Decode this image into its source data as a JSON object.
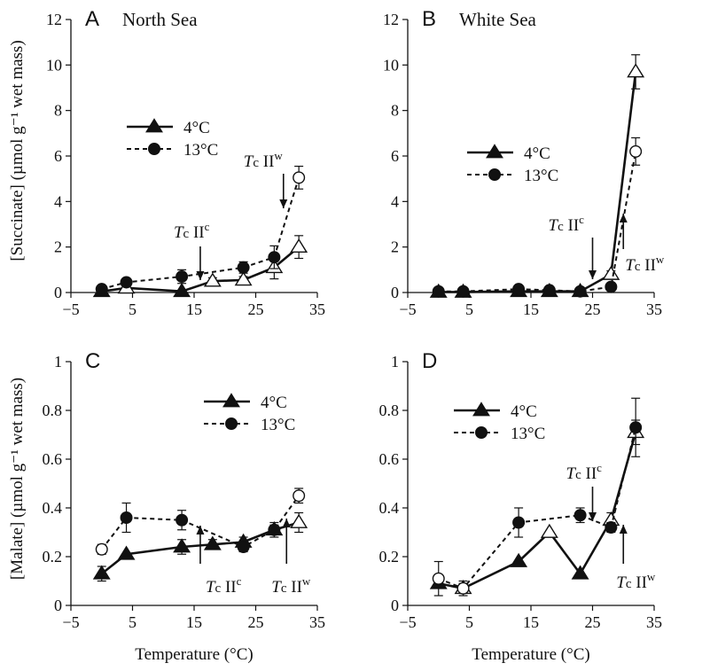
{
  "figure": {
    "ylabel_top": "[Succinate] (µmol g⁻¹ wet mass)",
    "ylabel_bottom": "[Malate] (µmol g⁻¹ wet mass)",
    "xlabel": "Temperature (°C)"
  },
  "chart_data": [
    {
      "type": "line",
      "panel": "A",
      "title": "North Sea",
      "xlim": [
        -5,
        35
      ],
      "xticks": [
        -5,
        5,
        15,
        25,
        35
      ],
      "ylim": [
        0,
        12
      ],
      "yticks": [
        0,
        2,
        4,
        6,
        8,
        10,
        12
      ],
      "xlabel": "",
      "legend": {
        "position": "left",
        "entries": [
          "4°C",
          "13°C"
        ]
      },
      "series": [
        {
          "name": "4°C",
          "marker": "triangle",
          "line": "solid",
          "x": [
            0,
            4,
            13,
            18,
            23,
            28,
            32
          ],
          "y": [
            0.05,
            0.2,
            0.05,
            0.5,
            0.55,
            1.1,
            2.0
          ],
          "err": [
            0,
            0,
            0,
            0.15,
            0.15,
            0.5,
            0.5
          ],
          "open": [
            false,
            true,
            false,
            true,
            true,
            true,
            true
          ]
        },
        {
          "name": "13°C",
          "marker": "circle",
          "line": "dashed",
          "x": [
            0,
            4,
            13,
            23,
            28,
            32
          ],
          "y": [
            0.15,
            0.45,
            0.7,
            1.1,
            1.55,
            5.05
          ],
          "err": [
            0,
            0,
            0.3,
            0.25,
            0.5,
            0.5
          ],
          "open": [
            false,
            false,
            false,
            false,
            false,
            true
          ]
        }
      ],
      "annotations": [
        {
          "main": "T",
          "sub": "c",
          "rest": " II",
          "sup": "c",
          "x": 16,
          "arrow": "down"
        },
        {
          "main": "T",
          "sub": "c",
          "rest": " II",
          "sup": "w",
          "x": 29.5,
          "arrow": "down"
        }
      ]
    },
    {
      "type": "line",
      "panel": "B",
      "title": "White Sea",
      "xlim": [
        -5,
        35
      ],
      "xticks": [
        -5,
        5,
        15,
        25,
        35
      ],
      "ylim": [
        0,
        12
      ],
      "yticks": [
        0,
        2,
        4,
        6,
        8,
        10,
        12
      ],
      "xlabel": "",
      "legend": {
        "position": "left",
        "entries": [
          "4°C",
          "13°C"
        ]
      },
      "series": [
        {
          "name": "4°C",
          "marker": "triangle",
          "line": "solid",
          "x": [
            0,
            4,
            13,
            18,
            23,
            28,
            32
          ],
          "y": [
            0.02,
            0.02,
            0.05,
            0.05,
            0.05,
            0.8,
            9.7
          ],
          "err": [
            0,
            0,
            0,
            0,
            0,
            0.15,
            0.75
          ],
          "open": [
            false,
            false,
            false,
            false,
            false,
            true,
            true
          ]
        },
        {
          "name": "13°C",
          "marker": "circle",
          "line": "dashed",
          "x": [
            0,
            4,
            13,
            18,
            23,
            28,
            32
          ],
          "y": [
            0.05,
            0.05,
            0.15,
            0.1,
            0.05,
            0.25,
            6.2
          ],
          "err": [
            0,
            0,
            0,
            0,
            0,
            0,
            0.6
          ],
          "open": [
            false,
            false,
            false,
            false,
            false,
            false,
            true
          ]
        }
      ],
      "annotations": [
        {
          "main": "T",
          "sub": "c",
          "rest": " II",
          "sup": "c",
          "x": 25,
          "arrow": "down"
        },
        {
          "main": "T",
          "sub": "c",
          "rest": " II",
          "sup": "w",
          "x": 30,
          "arrow": "up"
        }
      ]
    },
    {
      "type": "line",
      "panel": "C",
      "title": "",
      "xlim": [
        -5,
        35
      ],
      "xticks": [
        -5,
        5,
        15,
        25,
        35
      ],
      "ylim": [
        0,
        1
      ],
      "yticks": [
        0,
        0.2,
        0.4,
        0.6,
        0.8,
        1
      ],
      "xlabel": "Temperature (°C)",
      "legend": {
        "position": "top-right",
        "entries": [
          "4°C",
          "13°C"
        ]
      },
      "series": [
        {
          "name": "4°C",
          "marker": "triangle",
          "line": "solid",
          "x": [
            0,
            4,
            13,
            18,
            23,
            28,
            32
          ],
          "y": [
            0.13,
            0.21,
            0.24,
            0.25,
            0.26,
            0.31,
            0.34
          ],
          "err": [
            0.03,
            0,
            0.03,
            0.02,
            0.02,
            0.02,
            0.04
          ],
          "open": [
            false,
            false,
            false,
            false,
            false,
            false,
            true
          ]
        },
        {
          "name": "13°C",
          "marker": "circle",
          "line": "dashed",
          "x": [
            0,
            4,
            13,
            23,
            28,
            32
          ],
          "y": [
            0.23,
            0.36,
            0.35,
            0.24,
            0.31,
            0.45
          ],
          "err": [
            0.02,
            0.06,
            0.04,
            0.02,
            0.03,
            0.03
          ],
          "open": [
            true,
            false,
            false,
            false,
            false,
            true
          ]
        }
      ],
      "annotations": [
        {
          "main": "T",
          "sub": "c",
          "rest": " II",
          "sup": "c",
          "x": 16,
          "arrow": "up"
        },
        {
          "main": "T",
          "sub": "c",
          "rest": " II",
          "sup": "w",
          "x": 30,
          "arrow": "up"
        }
      ]
    },
    {
      "type": "line",
      "panel": "D",
      "title": "",
      "xlim": [
        -5,
        35
      ],
      "xticks": [
        -5,
        5,
        15,
        25,
        35
      ],
      "ylim": [
        0,
        1
      ],
      "yticks": [
        0,
        0.2,
        0.4,
        0.6,
        0.8,
        1
      ],
      "xlabel": "Temperature (°C)",
      "legend": {
        "position": "top-left",
        "entries": [
          "4°C",
          "13°C"
        ]
      },
      "series": [
        {
          "name": "4°C",
          "marker": "triangle",
          "line": "solid",
          "x": [
            0,
            4,
            13,
            18,
            23,
            28,
            32
          ],
          "y": [
            0.09,
            0.07,
            0.18,
            0.3,
            0.13,
            0.35,
            0.71
          ],
          "err": [
            0.02,
            0.02,
            0,
            0,
            0,
            0.03,
            0.05
          ],
          "open": [
            false,
            true,
            false,
            true,
            false,
            true,
            true
          ]
        },
        {
          "name": "13°C",
          "marker": "circle",
          "line": "dashed",
          "x": [
            0,
            4,
            13,
            23,
            28,
            32
          ],
          "y": [
            0.11,
            0.07,
            0.34,
            0.37,
            0.32,
            0.73
          ],
          "err": [
            0.07,
            0.03,
            0.06,
            0.03,
            0.02,
            0.12
          ],
          "open": [
            true,
            true,
            false,
            false,
            false,
            false
          ]
        }
      ],
      "annotations": [
        {
          "main": "T",
          "sub": "c",
          "rest": " II",
          "sup": "c",
          "x": 25,
          "arrow": "down"
        },
        {
          "main": "T",
          "sub": "c",
          "rest": " II",
          "sup": "w",
          "x": 30,
          "arrow": "up"
        }
      ]
    }
  ]
}
